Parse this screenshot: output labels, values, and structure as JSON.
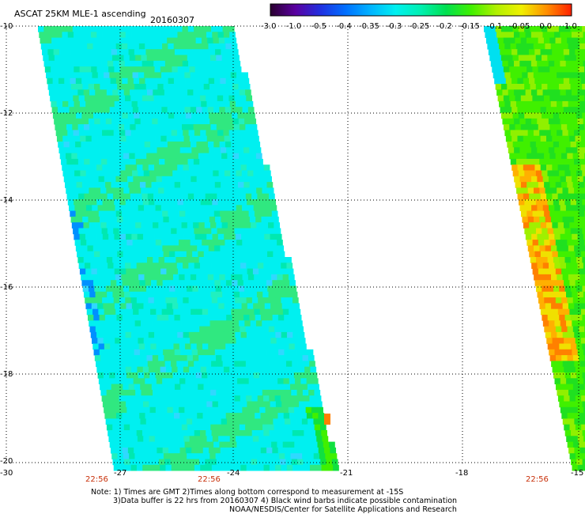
{
  "header": {
    "title": "ASCAT 25KM MLE-1 ascending",
    "date": "20160307"
  },
  "colorbar": {
    "labels": [
      "-3.0",
      "-1.0",
      "-0.5",
      "-0.4",
      "-0.35",
      "-0.3",
      "-0.25",
      "-0.2",
      "-0.15",
      "-0.1",
      "-0.05",
      "0.0",
      "1.0"
    ],
    "colors": [
      "#2a0030",
      "#5a00a0",
      "#2030e0",
      "#0070ff",
      "#00b4ff",
      "#00f0f0",
      "#00f0b0",
      "#00e050",
      "#40f000",
      "#b0f000",
      "#f0f000",
      "#ff9000",
      "#ff2000"
    ]
  },
  "axes": {
    "lat_labels": [
      "-10",
      "-12",
      "-14",
      "-16",
      "-18",
      "-20"
    ],
    "lon_labels": [
      "-30",
      "-27",
      "-24",
      "-21",
      "-18",
      "-15"
    ]
  },
  "swath_times": [
    "22:56",
    "22:56",
    "22:56"
  ],
  "notes": {
    "line1": "Note: 1) Times are GMT 2)Times along bottom correspond to measurement at -15S",
    "line2": "3)Data buffer is 22 hrs from 20160307 4) Black wind barbs indicate possible contamination",
    "line3": "NOAA/NESDIS/Center for Satellite Applications and Research"
  },
  "map_data": {
    "lat_range": [
      -20,
      -10
    ],
    "lon_range": [
      -30,
      -15
    ],
    "swaths": [
      {
        "name": "west",
        "dominant_value_range": [
          -0.3,
          -0.2
        ]
      },
      {
        "name": "east",
        "dominant_value_range": [
          -0.2,
          0.0
        ]
      }
    ]
  }
}
